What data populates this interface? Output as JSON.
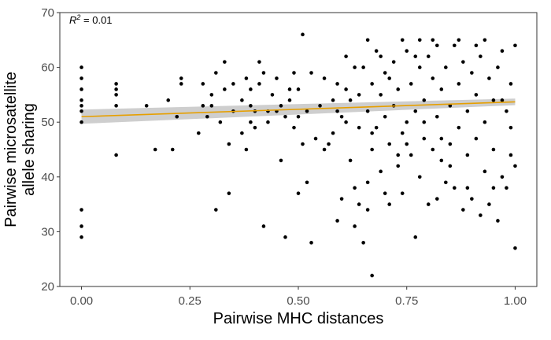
{
  "chart_data": {
    "type": "scatter",
    "xlabel": "Pairwise MHC distances",
    "ylabel": [
      "Pairwise microsatellite",
      "allele sharing"
    ],
    "xlim": [
      -0.05,
      1.05
    ],
    "ylim": [
      20,
      70
    ],
    "x_ticks": [
      0.0,
      0.25,
      0.5,
      0.75,
      1.0
    ],
    "x_tick_labels": [
      "0.00",
      "0.25",
      "0.50",
      "0.75",
      "1.00"
    ],
    "y_ticks": [
      20,
      30,
      40,
      50,
      60,
      70
    ],
    "y_tick_labels": [
      "20",
      "30",
      "40",
      "50",
      "60",
      "70"
    ],
    "annotation": {
      "main": "R",
      "sup": "2",
      "rest": " = 0.01"
    },
    "grid": false,
    "point_color": "#000000",
    "trend": {
      "x": [
        0.0,
        1.0
      ],
      "y": [
        51.0,
        53.7
      ],
      "ci_lower": [
        49.7,
        53.1
      ],
      "ci_upper": [
        52.3,
        54.3
      ],
      "color": "#E69F00",
      "band_color": "#BEBEBE"
    },
    "points": [
      [
        0.0,
        29
      ],
      [
        0.0,
        31
      ],
      [
        0.0,
        34
      ],
      [
        0.0,
        50
      ],
      [
        0.0,
        52
      ],
      [
        0.0,
        53
      ],
      [
        0.0,
        54
      ],
      [
        0.0,
        56
      ],
      [
        0.0,
        58
      ],
      [
        0.0,
        60
      ],
      [
        0.08,
        44
      ],
      [
        0.08,
        53
      ],
      [
        0.08,
        55
      ],
      [
        0.08,
        56
      ],
      [
        0.08,
        57
      ],
      [
        0.15,
        53
      ],
      [
        0.17,
        45
      ],
      [
        0.2,
        54
      ],
      [
        0.21,
        45
      ],
      [
        0.22,
        51
      ],
      [
        0.23,
        57
      ],
      [
        0.23,
        58
      ],
      [
        0.27,
        48
      ],
      [
        0.28,
        53
      ],
      [
        0.28,
        57
      ],
      [
        0.29,
        51
      ],
      [
        0.3,
        53
      ],
      [
        0.3,
        55
      ],
      [
        0.31,
        34
      ],
      [
        0.31,
        59
      ],
      [
        0.32,
        50
      ],
      [
        0.33,
        61
      ],
      [
        0.33,
        56
      ],
      [
        0.34,
        37
      ],
      [
        0.34,
        46
      ],
      [
        0.35,
        52
      ],
      [
        0.35,
        57
      ],
      [
        0.37,
        48
      ],
      [
        0.37,
        54
      ],
      [
        0.38,
        58
      ],
      [
        0.38,
        45
      ],
      [
        0.39,
        53
      ],
      [
        0.39,
        50
      ],
      [
        0.39,
        56
      ],
      [
        0.4,
        52
      ],
      [
        0.4,
        49
      ],
      [
        0.41,
        61
      ],
      [
        0.41,
        57
      ],
      [
        0.42,
        31
      ],
      [
        0.42,
        59
      ],
      [
        0.43,
        52
      ],
      [
        0.43,
        50
      ],
      [
        0.44,
        55
      ],
      [
        0.45,
        58
      ],
      [
        0.45,
        52
      ],
      [
        0.46,
        53
      ],
      [
        0.46,
        43
      ],
      [
        0.47,
        51
      ],
      [
        0.47,
        29
      ],
      [
        0.48,
        56
      ],
      [
        0.48,
        54
      ],
      [
        0.49,
        49
      ],
      [
        0.49,
        59
      ],
      [
        0.5,
        37
      ],
      [
        0.5,
        51
      ],
      [
        0.5,
        56
      ],
      [
        0.51,
        66
      ],
      [
        0.51,
        46
      ],
      [
        0.52,
        39
      ],
      [
        0.52,
        52
      ],
      [
        0.53,
        28
      ],
      [
        0.53,
        59
      ],
      [
        0.54,
        47
      ],
      [
        0.55,
        53
      ],
      [
        0.56,
        45
      ],
      [
        0.56,
        58
      ],
      [
        0.57,
        46
      ],
      [
        0.58,
        54
      ],
      [
        0.58,
        48
      ],
      [
        0.59,
        32
      ],
      [
        0.59,
        57
      ],
      [
        0.6,
        51
      ],
      [
        0.6,
        36
      ],
      [
        0.61,
        62
      ],
      [
        0.61,
        50
      ],
      [
        0.62,
        54
      ],
      [
        0.62,
        43
      ],
      [
        0.63,
        38
      ],
      [
        0.63,
        31
      ],
      [
        0.64,
        35
      ],
      [
        0.64,
        55
      ],
      [
        0.64,
        49
      ],
      [
        0.65,
        28
      ],
      [
        0.65,
        60
      ],
      [
        0.66,
        34
      ],
      [
        0.66,
        39
      ],
      [
        0.66,
        52
      ],
      [
        0.67,
        22
      ],
      [
        0.67,
        45
      ],
      [
        0.67,
        57
      ],
      [
        0.68,
        63
      ],
      [
        0.68,
        49
      ],
      [
        0.69,
        41
      ],
      [
        0.69,
        55
      ],
      [
        0.7,
        37
      ],
      [
        0.7,
        59
      ],
      [
        0.7,
        51
      ],
      [
        0.71,
        46
      ],
      [
        0.71,
        35
      ],
      [
        0.72,
        53
      ],
      [
        0.72,
        61
      ],
      [
        0.73,
        42
      ],
      [
        0.73,
        56
      ],
      [
        0.74,
        48
      ],
      [
        0.74,
        37
      ],
      [
        0.75,
        50
      ],
      [
        0.75,
        63
      ],
      [
        0.76,
        44
      ],
      [
        0.76,
        57
      ],
      [
        0.77,
        52
      ],
      [
        0.77,
        29
      ],
      [
        0.78,
        40
      ],
      [
        0.78,
        60
      ],
      [
        0.79,
        47
      ],
      [
        0.79,
        54
      ],
      [
        0.8,
        35
      ],
      [
        0.8,
        62
      ],
      [
        0.81,
        45
      ],
      [
        0.81,
        58
      ],
      [
        0.82,
        36
      ],
      [
        0.82,
        51
      ],
      [
        0.83,
        43
      ],
      [
        0.83,
        56
      ],
      [
        0.84,
        39
      ],
      [
        0.84,
        60
      ],
      [
        0.85,
        46
      ],
      [
        0.85,
        53
      ],
      [
        0.86,
        38
      ],
      [
        0.86,
        64
      ],
      [
        0.87,
        49
      ],
      [
        0.87,
        57
      ],
      [
        0.88,
        34
      ],
      [
        0.88,
        61
      ],
      [
        0.89,
        44
      ],
      [
        0.89,
        52
      ],
      [
        0.9,
        36
      ],
      [
        0.9,
        59
      ],
      [
        0.91,
        47
      ],
      [
        0.91,
        55
      ],
      [
        0.92,
        33
      ],
      [
        0.92,
        62
      ],
      [
        0.93,
        41
      ],
      [
        0.93,
        50
      ],
      [
        0.94,
        35
      ],
      [
        0.94,
        58
      ],
      [
        0.95,
        45
      ],
      [
        0.95,
        54
      ],
      [
        0.96,
        32
      ],
      [
        0.96,
        60
      ],
      [
        0.97,
        40
      ],
      [
        0.97,
        63
      ],
      [
        0.98,
        38
      ],
      [
        0.98,
        52
      ],
      [
        0.99,
        44
      ],
      [
        0.99,
        57
      ],
      [
        1.0,
        27
      ],
      [
        1.0,
        42
      ],
      [
        1.0,
        64
      ],
      [
        0.59,
        52
      ],
      [
        0.61,
        56
      ],
      [
        0.63,
        60
      ],
      [
        0.67,
        48
      ],
      [
        0.69,
        62
      ],
      [
        0.71,
        58
      ],
      [
        0.73,
        44
      ],
      [
        0.75,
        46
      ],
      [
        0.77,
        62
      ],
      [
        0.79,
        50
      ],
      [
        0.81,
        65
      ],
      [
        0.83,
        47
      ],
      [
        0.85,
        42
      ],
      [
        0.87,
        65
      ],
      [
        0.89,
        38
      ],
      [
        0.91,
        64
      ],
      [
        0.93,
        65
      ],
      [
        0.95,
        38
      ],
      [
        0.97,
        54
      ],
      [
        0.99,
        49
      ],
      [
        0.74,
        65
      ],
      [
        0.78,
        65
      ],
      [
        0.82,
        64
      ],
      [
        0.66,
        65
      ]
    ]
  }
}
